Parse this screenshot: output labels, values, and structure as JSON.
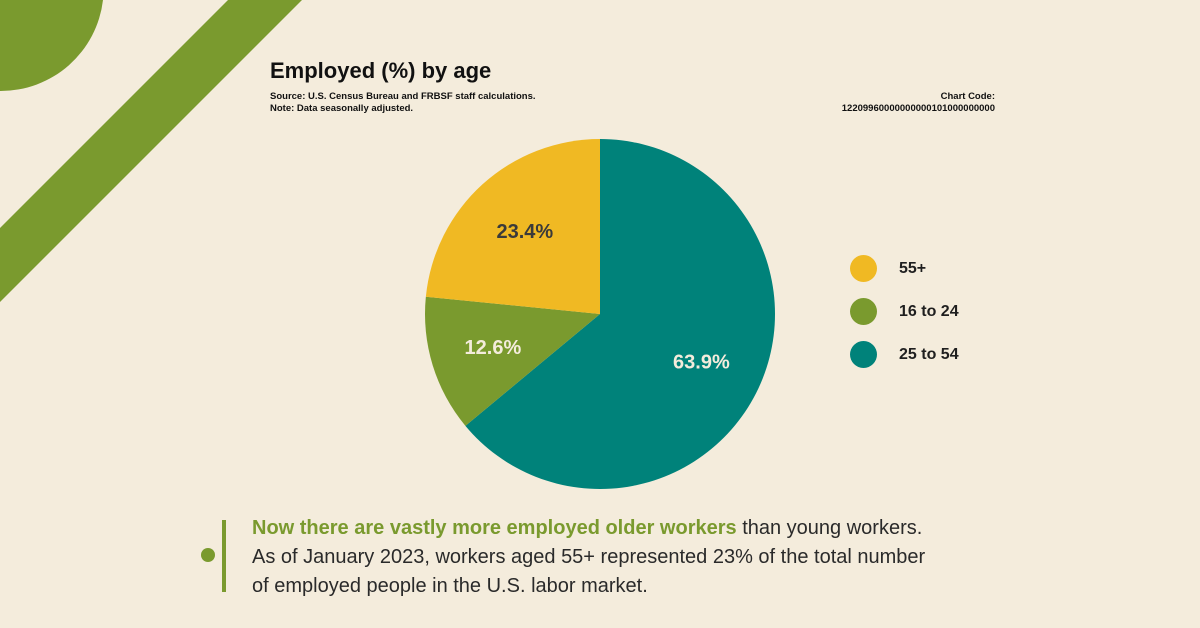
{
  "header": {
    "title": "Employed (%) by age",
    "source_line": "Source: U.S. Census Bureau and FRBSF staff calculations.",
    "note_line": "Note: Data seasonally adjusted.",
    "chart_code_label": "Chart Code:",
    "chart_code_value": "12209960000000000101000000000"
  },
  "chart_data": {
    "type": "pie",
    "title": "Employed (%) by age",
    "slices": [
      {
        "label": "25 to 54",
        "value": 63.9,
        "display": "63.9%",
        "color": "#00827a"
      },
      {
        "label": "16 to 24",
        "value": 12.6,
        "display": "12.6%",
        "color": "#7a9a2e"
      },
      {
        "label": "55+",
        "value": 23.4,
        "display": "23.4%",
        "color": "#f0b923"
      }
    ],
    "start": "top",
    "direction": "clockwise",
    "legend_position": "right",
    "legend_order": [
      "55+",
      "16 to 24",
      "25 to 54"
    ]
  },
  "caption": {
    "highlight": "Now there are vastly more employed older workers",
    "rest_line1": " than young workers.",
    "line2": "As of January 2023, workers aged 55+ represented 23% of the total number",
    "line3": "of employed people in the U.S. labor market."
  },
  "colors": {
    "background": "#f4ecdc",
    "accent_green": "#7a9a2e",
    "teal": "#00827a",
    "gold": "#f0b923"
  }
}
